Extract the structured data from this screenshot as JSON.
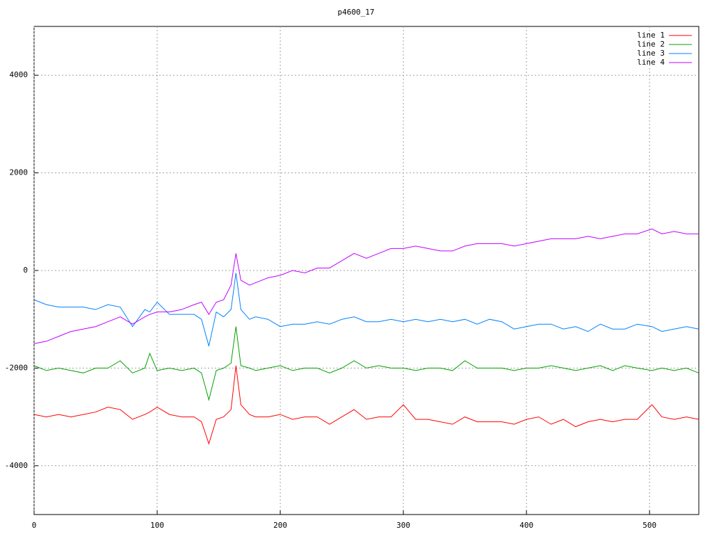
{
  "chart_data": {
    "type": "line",
    "title": "p4600_17",
    "x": [
      0,
      10,
      20,
      30,
      40,
      50,
      60,
      70,
      80,
      90,
      94,
      100,
      110,
      120,
      130,
      136,
      142,
      148,
      154,
      160,
      164,
      168,
      175,
      180,
      190,
      200,
      210,
      220,
      230,
      240,
      250,
      260,
      270,
      280,
      290,
      300,
      310,
      320,
      330,
      340,
      350,
      360,
      370,
      380,
      390,
      400,
      410,
      420,
      430,
      440,
      450,
      460,
      470,
      480,
      490,
      502,
      510,
      520,
      530,
      540
    ],
    "series": [
      {
        "name": "line 1",
        "color": "#ff0000",
        "values": [
          -2950,
          -3000,
          -2950,
          -3000,
          -2950,
          -2900,
          -2800,
          -2850,
          -3050,
          -2950,
          -2900,
          -2800,
          -2950,
          -3000,
          -3000,
          -3100,
          -3550,
          -3050,
          -3000,
          -2850,
          -1950,
          -2750,
          -2950,
          -3000,
          -3000,
          -2950,
          -3050,
          -3000,
          -3000,
          -3150,
          -3000,
          -2850,
          -3050,
          -3000,
          -3000,
          -2750,
          -3050,
          -3050,
          -3100,
          -3150,
          -3000,
          -3100,
          -3100,
          -3100,
          -3150,
          -3050,
          -3000,
          -3150,
          -3050,
          -3200,
          -3100,
          -3050,
          -3100,
          -3050,
          -3050,
          -2750,
          -3000,
          -3050,
          -3000,
          -3050
        ]
      },
      {
        "name": "line 2",
        "color": "#00a000",
        "values": [
          -1950,
          -2050,
          -2000,
          -2050,
          -2100,
          -2000,
          -2000,
          -1850,
          -2100,
          -2000,
          -1700,
          -2050,
          -2000,
          -2050,
          -2000,
          -2100,
          -2650,
          -2050,
          -2000,
          -1900,
          -1150,
          -1950,
          -2000,
          -2050,
          -2000,
          -1950,
          -2050,
          -2000,
          -2000,
          -2100,
          -2000,
          -1850,
          -2000,
          -1950,
          -2000,
          -2000,
          -2050,
          -2000,
          -2000,
          -2050,
          -1850,
          -2000,
          -2000,
          -2000,
          -2050,
          -2000,
          -2000,
          -1950,
          -2000,
          -2050,
          -2000,
          -1950,
          -2050,
          -1950,
          -2000,
          -2050,
          -2000,
          -2050,
          -2000,
          -2100
        ]
      },
      {
        "name": "line 3",
        "color": "#0080ff",
        "values": [
          -600,
          -700,
          -750,
          -750,
          -750,
          -800,
          -700,
          -750,
          -1150,
          -800,
          -850,
          -650,
          -900,
          -900,
          -900,
          -1000,
          -1550,
          -850,
          -950,
          -800,
          -50,
          -800,
          -1000,
          -950,
          -1000,
          -1150,
          -1100,
          -1100,
          -1050,
          -1100,
          -1000,
          -950,
          -1050,
          -1050,
          -1000,
          -1050,
          -1000,
          -1050,
          -1000,
          -1050,
          -1000,
          -1100,
          -1000,
          -1050,
          -1200,
          -1150,
          -1100,
          -1100,
          -1200,
          -1150,
          -1250,
          -1100,
          -1200,
          -1200,
          -1100,
          -1150,
          -1250,
          -1200,
          -1150,
          -1200
        ]
      },
      {
        "name": "line 4",
        "color": "#c000ff",
        "values": [
          -1500,
          -1450,
          -1350,
          -1250,
          -1200,
          -1150,
          -1050,
          -950,
          -1100,
          -950,
          -900,
          -850,
          -850,
          -800,
          -700,
          -650,
          -900,
          -650,
          -600,
          -300,
          350,
          -200,
          -300,
          -250,
          -150,
          -100,
          0,
          -50,
          50,
          50,
          200,
          350,
          250,
          350,
          450,
          450,
          500,
          450,
          400,
          400,
          500,
          550,
          550,
          550,
          500,
          550,
          600,
          650,
          650,
          650,
          700,
          650,
          700,
          750,
          750,
          850,
          750,
          800,
          750,
          750
        ]
      }
    ],
    "xlim": [
      0,
      540
    ],
    "xticks": [
      0,
      100,
      200,
      300,
      400,
      500
    ],
    "ylim": [
      -5000,
      5000
    ],
    "yticks": [
      -4000,
      -2000,
      0,
      2000,
      4000
    ],
    "grid": true,
    "legend": "top-right"
  }
}
